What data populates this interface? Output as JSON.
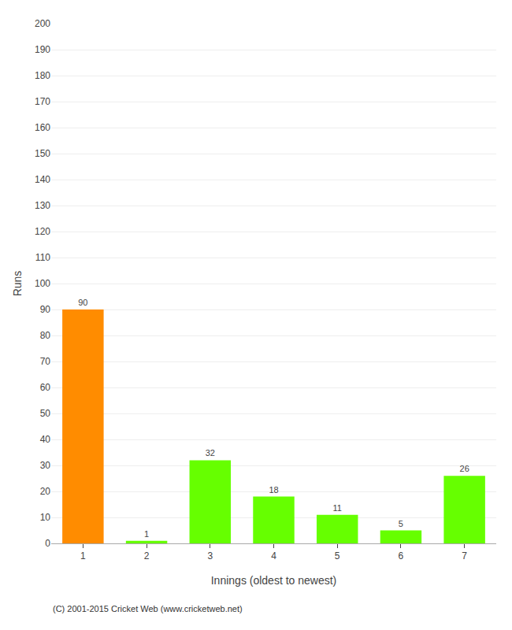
{
  "chart_data": {
    "type": "bar",
    "categories": [
      "1",
      "2",
      "3",
      "4",
      "5",
      "6",
      "7"
    ],
    "values": [
      90,
      1,
      32,
      18,
      11,
      5,
      26
    ],
    "colors": [
      "#ff8c00",
      "#66ff00",
      "#66ff00",
      "#66ff00",
      "#66ff00",
      "#66ff00",
      "#66ff00"
    ],
    "xlabel": "Innings (oldest to newest)",
    "ylabel": "Runs",
    "ylim": [
      0,
      200
    ],
    "yticks": [
      0,
      10,
      20,
      30,
      40,
      50,
      60,
      70,
      80,
      90,
      100,
      110,
      120,
      130,
      140,
      150,
      160,
      170,
      180,
      190,
      200
    ],
    "grid": true,
    "data_labels": true,
    "annotations": [
      "(C) 2001-2015 Cricket Web (www.cricketweb.net)"
    ]
  }
}
